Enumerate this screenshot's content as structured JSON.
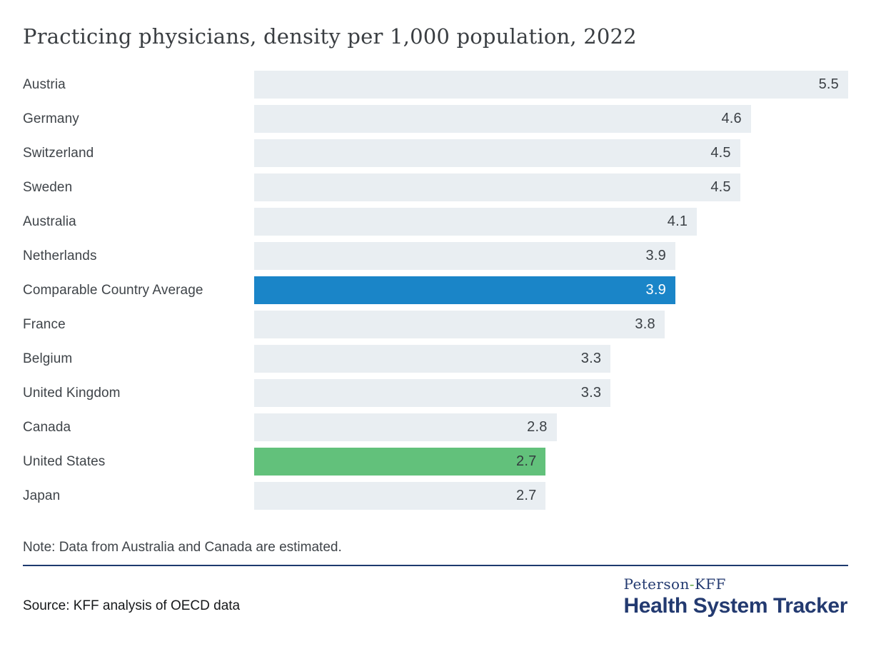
{
  "title": "Practicing physicians, density per 1,000 population, 2022",
  "note": "Note: Data from Australia and Canada are estimated.",
  "source": "Source: KFF analysis of OECD data",
  "logo": {
    "line1_pre": "Peterson",
    "hyphen": "-",
    "line1_post": "KFF",
    "line2": "Health System Tracker"
  },
  "colors": {
    "bar_default": "#e9eef2",
    "bar_highlight_blue": "#1a85c8",
    "bar_highlight_green": "#62c17b",
    "divider_navy": "#1d3a6e",
    "logo_navy": "#233a70",
    "logo_hyphen_green": "#61a744",
    "text_dark": "#3f4449"
  },
  "chart_data": {
    "type": "bar",
    "orientation": "horizontal",
    "title": "Practicing physicians, density per 1,000 population, 2022",
    "xlabel": "",
    "ylabel": "",
    "xlim": [
      0,
      5.5
    ],
    "grid": false,
    "legend": false,
    "value_labels": "inside-end",
    "categories": [
      "Austria",
      "Germany",
      "Switzerland",
      "Sweden",
      "Australia",
      "Netherlands",
      "Comparable Country Average",
      "France",
      "Belgium",
      "United Kingdom",
      "Canada",
      "United States",
      "Japan"
    ],
    "values": [
      5.5,
      4.6,
      4.5,
      4.5,
      4.1,
      3.9,
      3.9,
      3.8,
      3.3,
      3.3,
      2.8,
      2.7,
      2.7
    ],
    "bars": [
      {
        "label": "Austria",
        "value": 5.5,
        "display": "5.5",
        "variant": "default"
      },
      {
        "label": "Germany",
        "value": 4.6,
        "display": "4.6",
        "variant": "default"
      },
      {
        "label": "Switzerland",
        "value": 4.5,
        "display": "4.5",
        "variant": "default"
      },
      {
        "label": "Sweden",
        "value": 4.5,
        "display": "4.5",
        "variant": "default"
      },
      {
        "label": "Australia",
        "value": 4.1,
        "display": "4.1",
        "variant": "default"
      },
      {
        "label": "Netherlands",
        "value": 3.9,
        "display": "3.9",
        "variant": "default"
      },
      {
        "label": "Comparable Country Average",
        "value": 3.9,
        "display": "3.9",
        "variant": "blue"
      },
      {
        "label": "France",
        "value": 3.8,
        "display": "3.8",
        "variant": "default"
      },
      {
        "label": "Belgium",
        "value": 3.3,
        "display": "3.3",
        "variant": "default"
      },
      {
        "label": "United Kingdom",
        "value": 3.3,
        "display": "3.3",
        "variant": "default"
      },
      {
        "label": "Canada",
        "value": 2.8,
        "display": "2.8",
        "variant": "default"
      },
      {
        "label": "United States",
        "value": 2.7,
        "display": "2.7",
        "variant": "green"
      },
      {
        "label": "Japan",
        "value": 2.7,
        "display": "2.7",
        "variant": "default"
      }
    ]
  }
}
